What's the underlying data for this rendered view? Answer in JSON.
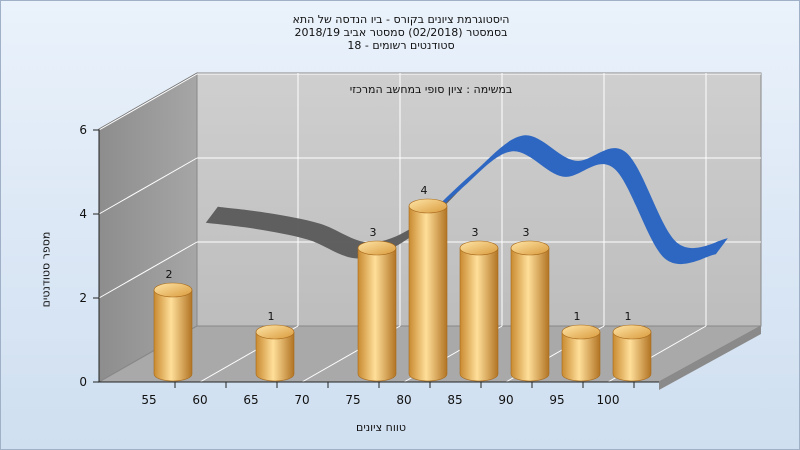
{
  "title_lines": [
    "היסטוגרמת ציונים בקורס - ביו הנדסה של התא",
    "בסמסטר  (02/2018)  סמסטר אביב 2018/19",
    "סטודנטים רשומים - 18"
  ],
  "annotation": "במשימה : ציון סופי במחשב המרכזי",
  "chart_data": {
    "type": "bar",
    "title": "היסטוגרמת ציונים בקורס - ביו הנדסה של התא",
    "xlabel": "טווח ציונים",
    "ylabel": "מספר סטודנטים",
    "x_ticks": [
      "55",
      "60",
      "65",
      "70",
      "75",
      "80",
      "85",
      "90",
      "95",
      "100"
    ],
    "y_ticks": [
      "0",
      "2",
      "4",
      "6"
    ],
    "ylim": [
      0,
      6
    ],
    "bars": [
      {
        "category": "55",
        "value": 2
      },
      {
        "category": "65",
        "value": 1
      },
      {
        "category": "75",
        "value": 3
      },
      {
        "category": "80",
        "value": 4
      },
      {
        "category": "85",
        "value": 3
      },
      {
        "category": "90",
        "value": 3
      },
      {
        "category": "95",
        "value": 1
      },
      {
        "category": "100",
        "value": 1
      }
    ],
    "bar_labels": [
      "2",
      "1",
      "3",
      "4",
      "3",
      "3",
      "1",
      "1"
    ],
    "curve": [
      {
        "x": 55,
        "y": 2.6
      },
      {
        "x": 60,
        "y": 2.45
      },
      {
        "x": 65,
        "y": 2.2
      },
      {
        "x": 70,
        "y": 1.75
      },
      {
        "x": 75,
        "y": 2.25
      },
      {
        "x": 80,
        "y": 3.4
      },
      {
        "x": 85,
        "y": 4.3
      },
      {
        "x": 90,
        "y": 3.7
      },
      {
        "x": 95,
        "y": 3.9
      },
      {
        "x": 100,
        "y": 1.75
      },
      {
        "x": 105,
        "y": 1.85
      }
    ],
    "colors": {
      "bar_light": "#ffdf9a",
      "bar_mid": "#e0a64a",
      "bar_dark": "#a86a1c",
      "curve_gray": "#5a5a5a",
      "curve_blue": "#2d67c2",
      "wall": "#c7c7c7",
      "side_wall": "#959595",
      "floor": "#a9a9a9",
      "grid": "#ffffff"
    },
    "grid": true
  }
}
